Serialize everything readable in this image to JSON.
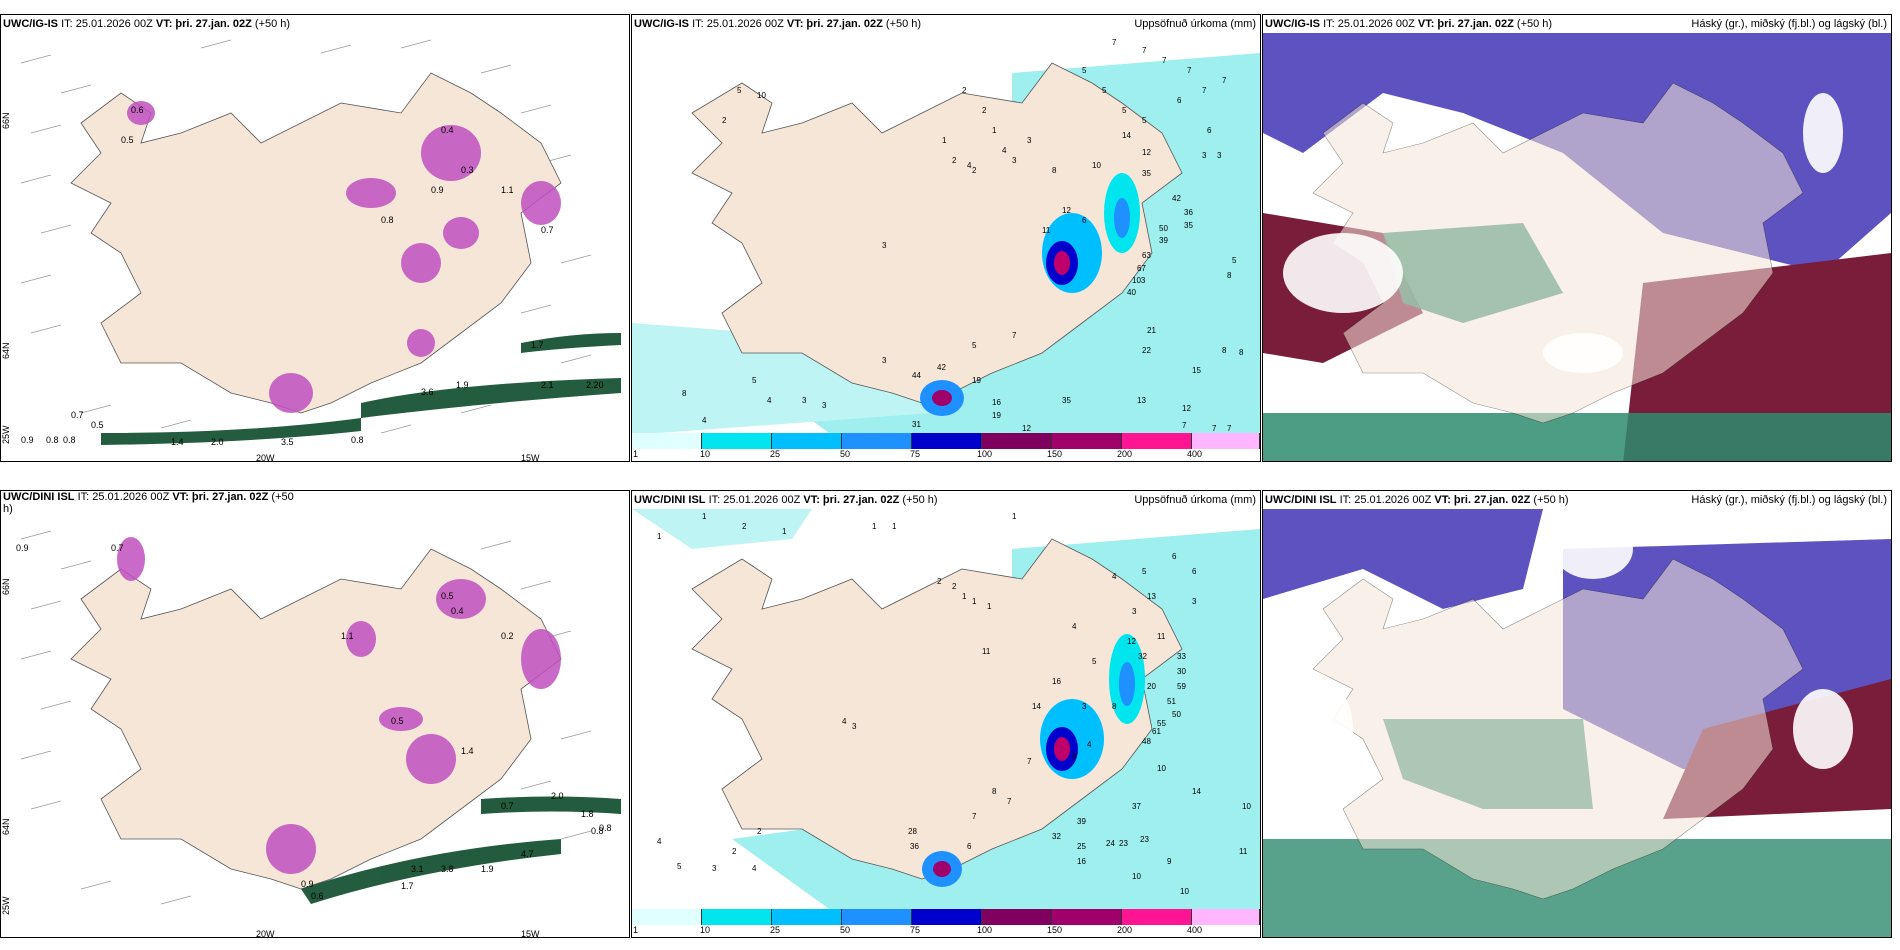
{
  "panels": [
    {
      "id": "p1",
      "model": "UWC/IG-IS",
      "it": "IT: 25.01.2026 00Z",
      "vt_label": "VT:",
      "vt": "þri. 27.jan. 02Z",
      "lead": "(+50 h)",
      "right_title": "",
      "axis": {
        "lon": [
          "20W",
          "15W"
        ],
        "lat": [
          "66N",
          "64N",
          "25W"
        ]
      },
      "values": [
        "0.6",
        "0.5",
        "0.4",
        "0.3",
        "0.9",
        "1.1",
        "0.7",
        "0.8",
        "1.4",
        "2.0",
        "3.5",
        "0.8",
        "3.6",
        "2.1",
        "2.20",
        "1.7",
        "1.9",
        "0.7",
        "0.5",
        "0.9",
        "0.8",
        "0.8"
      ]
    },
    {
      "id": "p2",
      "model": "UWC/IG-IS",
      "it": "IT: 25.01.2026 00Z",
      "vt_label": "VT:",
      "vt": "þri. 27.jan. 02Z",
      "lead": "(+50 h)",
      "right_title": "Uppsöfnuð úrkoma (mm)",
      "values": [
        "7",
        "7",
        "7",
        "7",
        "6",
        "7",
        "7",
        "5",
        "5",
        "5",
        "5",
        "14",
        "12",
        "6",
        "3",
        "3",
        "2",
        "2",
        "1",
        "4",
        "3",
        "2",
        "10",
        "35",
        "42",
        "36",
        "50",
        "35",
        "39",
        "63",
        "67",
        "103",
        "40",
        "21",
        "22",
        "15",
        "13",
        "12",
        "8",
        "5",
        "8",
        "8",
        "44",
        "42",
        "19",
        "16",
        "19",
        "35",
        "31",
        "12",
        "7",
        "7",
        "7",
        "8",
        "5",
        "4",
        "3",
        "3",
        "4",
        "3",
        "4",
        "8",
        "11",
        "12",
        "6",
        "7",
        "5",
        "3",
        "2",
        "5",
        "10",
        "1",
        "2",
        "3"
      ],
      "colorbar": [
        "1",
        "10",
        "25",
        "50",
        "75",
        "100",
        "150",
        "200",
        "400"
      ]
    },
    {
      "id": "p3",
      "model": "UWC/IG-IS",
      "it": "IT: 25.01.2026 00Z",
      "vt_label": "VT:",
      "vt": "þri. 27.jan. 02Z",
      "lead": "(+50 h)",
      "right_title": "Háský (gr.), miðský (fj.bl.) og lágský (bl.)"
    },
    {
      "id": "p4",
      "model": "UWC/DINI ISL",
      "it": "IT: 25.01.2026 00Z",
      "vt_label": "VT:",
      "vt": "þri. 27.jan. 02Z",
      "lead": "(+50",
      "lead2": "h)",
      "right_title": "",
      "axis": {
        "lon": [
          "20W",
          "15W"
        ],
        "lat": [
          "66N",
          "64N",
          "25W"
        ]
      },
      "values": [
        "0.9",
        "0.7",
        "0.5",
        "0.4",
        "1.1",
        "0.2",
        "0.5",
        "1.4",
        "0.7",
        "2.0",
        "1.8",
        "0.8",
        "4.7",
        "3.1",
        "3.8",
        "1.9",
        "1.7",
        "0.9",
        "0.6",
        "0.8"
      ]
    },
    {
      "id": "p5",
      "model": "UWC/DINI ISL",
      "it": "IT: 25.01.2026 00Z",
      "vt_label": "VT:",
      "vt": "þri. 27.jan. 02Z",
      "lead": "(+50 h)",
      "right_title": "Uppsöfnuð úrkoma (mm)",
      "values": [
        "1",
        "2",
        "1",
        "1",
        "1",
        "1",
        "1",
        "6",
        "6",
        "5",
        "4",
        "3",
        "13",
        "12",
        "11",
        "32",
        "33",
        "30",
        "59",
        "51",
        "50",
        "55",
        "61",
        "48",
        "20",
        "10",
        "14",
        "37",
        "39",
        "32",
        "25",
        "24",
        "23",
        "23",
        "16",
        "10",
        "10",
        "9",
        "11",
        "10",
        "28",
        "36",
        "6",
        "7",
        "8",
        "7",
        "4",
        "5",
        "3",
        "4",
        "2",
        "2",
        "16",
        "14",
        "8",
        "3",
        "6",
        "4",
        "7",
        "4",
        "3",
        "2",
        "2",
        "1",
        "1",
        "1",
        "4",
        "11",
        "5",
        "3"
      ],
      "colorbar": [
        "1",
        "10",
        "25",
        "50",
        "75",
        "100",
        "150",
        "200",
        "400"
      ]
    },
    {
      "id": "p6",
      "model": "UWC/DINI ISL",
      "it": "IT: 25.01.2026 00Z",
      "vt_label": "VT:",
      "vt": "þri. 27.jan. 02Z",
      "lead": "(+50 h)",
      "right_title": "Háský (gr.), miðský (fj.bl.) og lágský (bl.)"
    }
  ],
  "colorbar_colors": [
    "#e0ffff",
    "#00e5ee",
    "#00bfff",
    "#1e90ff",
    "#0000cd",
    "#800060",
    "#a0006a",
    "#ff1493",
    "#ffb6ff"
  ],
  "colors": {
    "land": "#f5e6d8",
    "cyan": "#9fefef",
    "darkgreen": "#0b4a2a",
    "magenta": "#c050c0",
    "purple": "#4b3fb8",
    "maroon": "#7a1d3a",
    "teal": "#2e8b6e"
  }
}
